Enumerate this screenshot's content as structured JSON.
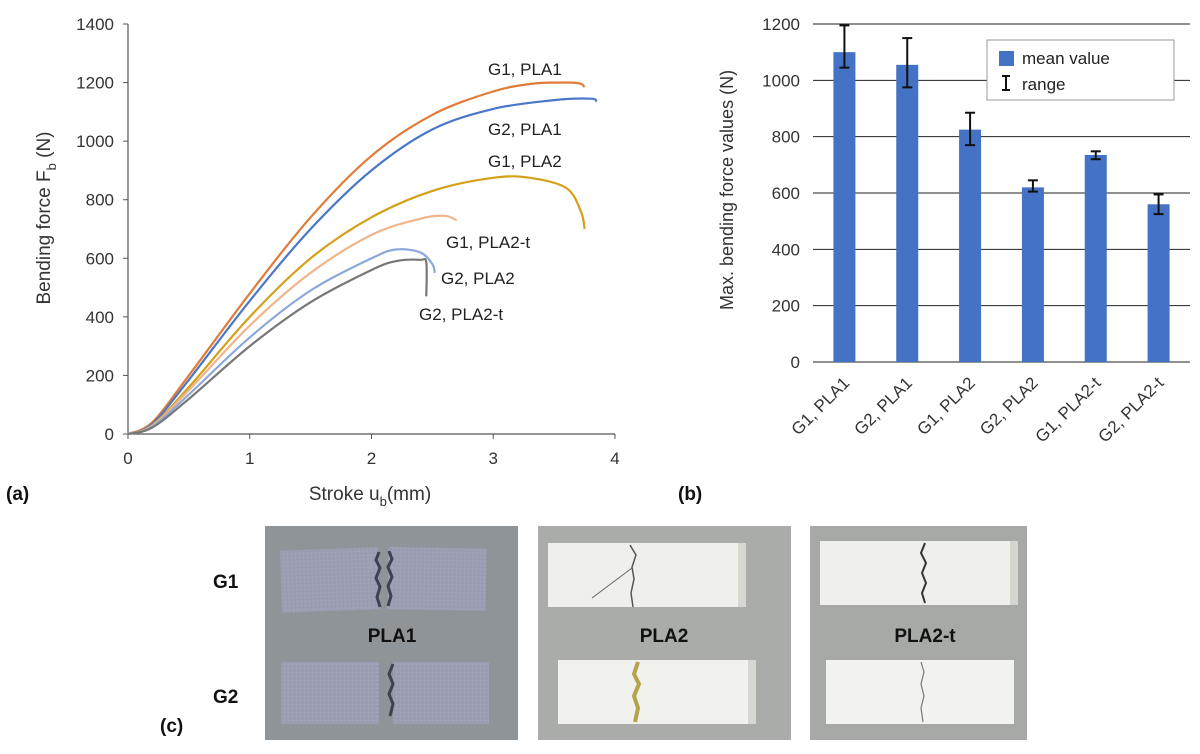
{
  "chart_data": [
    {
      "type": "line",
      "panel_label": "(a)",
      "xlabel": "Stroke u",
      "xlabel_sub": "b",
      "xlabel_unit": "(mm)",
      "ylabel": "Bending force F",
      "ylabel_sub": "b",
      "ylabel_unit": " (N)",
      "xlim": [
        0,
        4
      ],
      "ylim": [
        0,
        1400
      ],
      "xticks": [
        "0",
        "1",
        "2",
        "3",
        "4"
      ],
      "yticks": [
        "0",
        "200",
        "400",
        "600",
        "800",
        "1000",
        "1200",
        "1400"
      ],
      "grid": false,
      "series": [
        {
          "name": "G1, PLA1",
          "color": "#e07b39",
          "x": [
            0,
            0.2,
            0.5,
            1.0,
            1.5,
            2.0,
            2.5,
            3.0,
            3.3,
            3.5,
            3.7,
            3.75
          ],
          "y": [
            0,
            40,
            200,
            480,
            740,
            950,
            1090,
            1170,
            1195,
            1200,
            1198,
            1185
          ]
        },
        {
          "name": "G2, PLA1",
          "color": "#4a78c8",
          "x": [
            0,
            0.2,
            0.5,
            1.0,
            1.5,
            2.0,
            2.5,
            3.0,
            3.5,
            3.8,
            3.85
          ],
          "y": [
            0,
            35,
            185,
            455,
            700,
            900,
            1040,
            1110,
            1140,
            1145,
            1135
          ]
        },
        {
          "name": "G1, PLA2",
          "color": "#d4a017",
          "x": [
            0,
            0.2,
            0.5,
            1.0,
            1.5,
            2.0,
            2.5,
            3.0,
            3.3,
            3.6,
            3.72,
            3.75
          ],
          "y": [
            0,
            30,
            160,
            400,
            600,
            740,
            830,
            875,
            875,
            840,
            760,
            700
          ]
        },
        {
          "name": "G1, PLA2-t",
          "color": "#f2b48a",
          "x": [
            0,
            0.2,
            0.5,
            1.0,
            1.5,
            2.0,
            2.4,
            2.6,
            2.7
          ],
          "y": [
            0,
            28,
            150,
            370,
            550,
            680,
            735,
            745,
            730
          ]
        },
        {
          "name": "G2, PLA2",
          "color": "#8aa8dc",
          "x": [
            0,
            0.2,
            0.5,
            1.0,
            1.5,
            2.0,
            2.2,
            2.4,
            2.5,
            2.52
          ],
          "y": [
            0,
            25,
            135,
            330,
            490,
            600,
            630,
            620,
            580,
            550
          ]
        },
        {
          "name": "G2, PLA2-t",
          "color": "#777777",
          "x": [
            0,
            0.2,
            0.5,
            1.0,
            1.5,
            2.0,
            2.2,
            2.4,
            2.45,
            2.45
          ],
          "y": [
            0,
            22,
            120,
            300,
            450,
            560,
            590,
            595,
            585,
            470
          ]
        }
      ]
    },
    {
      "type": "bar",
      "panel_label": "(b)",
      "ylabel": "Max. bending force values (N)",
      "ylim": [
        0,
        1200
      ],
      "yticks": [
        "0",
        "200",
        "400",
        "600",
        "800",
        "1000",
        "1200"
      ],
      "grid": true,
      "categories": [
        "G1, PLA1",
        "G2, PLA1",
        "G1, PLA2",
        "G2, PLA2",
        "G1, PLA2-t",
        "G2, PLA2-t"
      ],
      "values": [
        1100,
        1055,
        825,
        620,
        735,
        560
      ],
      "range_low": [
        1045,
        975,
        770,
        605,
        720,
        525
      ],
      "range_high": [
        1195,
        1150,
        885,
        645,
        748,
        595
      ],
      "bar_color": "#4472c4",
      "legend": {
        "position": "top-right",
        "mean_label": "mean value",
        "range_label": "range"
      }
    }
  ],
  "photos": {
    "panel_label": "(c)",
    "row_labels": [
      "G1",
      "G2"
    ],
    "groups": [
      "PLA1",
      "PLA2",
      "PLA2-t"
    ]
  }
}
